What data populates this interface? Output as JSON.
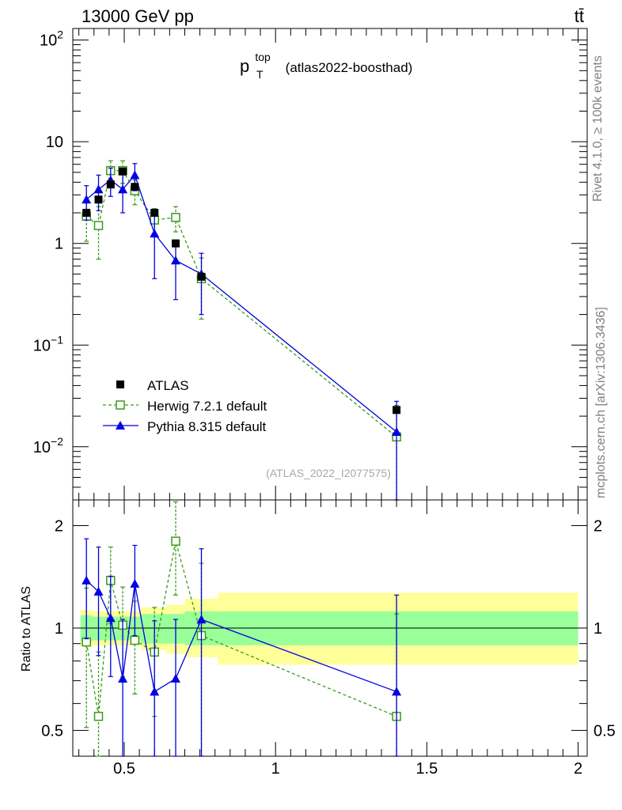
{
  "header": {
    "energy_label": "13000 GeV pp",
    "process_label": "tt̄"
  },
  "side_labels": {
    "rivet": "Rivet 4.1.0, ≥ 100k events",
    "mcplots": "mcplots.cern.ch [arXiv:1306.3436]"
  },
  "colors": {
    "atlas": "#000000",
    "herwig": "#3a9a1a",
    "pythia": "#0000e0",
    "band_inner": "#99ff99",
    "band_outer": "#ffff99"
  },
  "chart_data": [
    {
      "type": "scatter",
      "title_main": "p",
      "title_sub": "T",
      "title_sup": "top",
      "title_suffix": "(atlas2022-boosthad)",
      "watermark": "(ATLAS_2022_I2077575)",
      "xlim": [
        0.33,
        2.03
      ],
      "ylim": [
        0.003,
        130
      ],
      "yscale": "log",
      "ytick_labels": [
        {
          "value": 100,
          "base": "10",
          "exp": "2"
        },
        {
          "value": 10,
          "base": "10",
          "exp": ""
        },
        {
          "value": 1,
          "base": "1",
          "exp": ""
        },
        {
          "value": 0.1,
          "base": "10",
          "exp": "−1"
        },
        {
          "value": 0.01,
          "base": "10",
          "exp": "−2"
        }
      ],
      "legend": {
        "position": "lower-left",
        "entries": [
          "ATLAS",
          "Herwig 7.2.1 default",
          "Pythia 8.315 default"
        ]
      },
      "series": [
        {
          "name": "ATLAS",
          "marker": "filled-square",
          "x": [
            0.375,
            0.415,
            0.455,
            0.495,
            0.535,
            0.6,
            0.67,
            0.755,
            1.4
          ],
          "y": [
            2.0,
            2.7,
            3.8,
            5.1,
            3.6,
            2.0,
            1.0,
            0.47,
            0.023
          ]
        },
        {
          "name": "Herwig 7.2.1 default",
          "marker": "open-square",
          "line": "dashed",
          "x": [
            0.375,
            0.415,
            0.455,
            0.495,
            0.535,
            0.6,
            0.67,
            0.755,
            1.4
          ],
          "y": [
            1.85,
            1.5,
            5.2,
            5.2,
            3.3,
            1.7,
            1.8,
            0.45,
            0.0125
          ],
          "err_low": [
            0.8,
            0.8,
            1.3,
            1.3,
            0.9,
            0.5,
            0.5,
            0.27,
            0.0125
          ],
          "err_high": [
            0.8,
            0.8,
            1.3,
            1.3,
            0.9,
            0.5,
            0.5,
            0.27,
            0.013
          ]
        },
        {
          "name": "Pythia 8.315 default",
          "marker": "filled-triangle",
          "line": "solid",
          "x": [
            0.375,
            0.415,
            0.455,
            0.495,
            0.535,
            0.6,
            0.67,
            0.755,
            1.4
          ],
          "y": [
            2.7,
            3.4,
            4.2,
            3.4,
            4.7,
            1.25,
            0.68,
            0.5,
            0.014
          ],
          "err_low": [
            1.0,
            1.3,
            1.3,
            1.4,
            1.4,
            0.8,
            0.4,
            0.3,
            0.014
          ],
          "err_high": [
            1.0,
            1.3,
            1.3,
            1.4,
            1.4,
            0.8,
            0.4,
            0.3,
            0.014
          ]
        }
      ]
    },
    {
      "type": "scatter",
      "ylabel": "Ratio to ATLAS",
      "xlim": [
        0.33,
        2.03
      ],
      "ylim": [
        0.42,
        2.38
      ],
      "yscale": "log",
      "ytick_labels": [
        {
          "value": 2,
          "label": "2"
        },
        {
          "value": 1,
          "label": "1"
        },
        {
          "value": 0.5,
          "label": "0.5"
        }
      ],
      "xtick_labels": [
        {
          "value": 0.5,
          "label": "0.5"
        },
        {
          "value": 1,
          "label": "1"
        },
        {
          "value": 1.5,
          "label": "1.5"
        },
        {
          "value": 2,
          "label": "2"
        }
      ],
      "bands": {
        "edges": [
          0.355,
          0.395,
          0.435,
          0.475,
          0.515,
          0.555,
          0.64,
          0.7,
          0.81,
          2.0
        ],
        "inner_low": [
          0.91,
          0.92,
          0.92,
          0.92,
          0.92,
          0.9,
          0.9,
          0.89,
          0.89
        ],
        "inner_high": [
          1.09,
          1.08,
          1.08,
          1.08,
          1.08,
          1.1,
          1.1,
          1.12,
          1.12
        ],
        "outer_low": [
          0.88,
          0.89,
          0.89,
          0.89,
          0.89,
          0.86,
          0.84,
          0.82,
          0.78
        ],
        "outer_high": [
          1.13,
          1.12,
          1.12,
          1.12,
          1.12,
          1.15,
          1.17,
          1.22,
          1.27
        ]
      },
      "series": [
        {
          "name": "Herwig 7.2.1 default",
          "marker": "open-square",
          "line": "dashed",
          "x": [
            0.375,
            0.415,
            0.455,
            0.495,
            0.535,
            0.6,
            0.67,
            0.755,
            1.4
          ],
          "y": [
            0.91,
            0.55,
            1.38,
            1.02,
            0.92,
            0.85,
            1.8,
            0.95,
            0.55
          ],
          "err_low": [
            0.4,
            0.3,
            0.35,
            0.3,
            0.28,
            0.3,
            0.55,
            0.6,
            0.55
          ],
          "err_high": [
            0.4,
            0.3,
            0.35,
            0.3,
            0.28,
            0.3,
            0.55,
            0.6,
            0.55
          ]
        },
        {
          "name": "Pythia 8.315 default",
          "marker": "filled-triangle",
          "line": "solid",
          "x": [
            0.375,
            0.415,
            0.455,
            0.495,
            0.535,
            0.6,
            0.67,
            0.755,
            1.4
          ],
          "y": [
            1.38,
            1.28,
            1.07,
            0.71,
            1.35,
            0.65,
            0.71,
            1.06,
            0.65
          ],
          "err_low": [
            0.45,
            0.45,
            0.35,
            0.35,
            0.4,
            0.4,
            0.35,
            0.65,
            0.6
          ],
          "err_high": [
            0.45,
            0.45,
            0.35,
            0.35,
            0.4,
            0.4,
            0.35,
            0.65,
            0.6
          ]
        }
      ]
    }
  ]
}
